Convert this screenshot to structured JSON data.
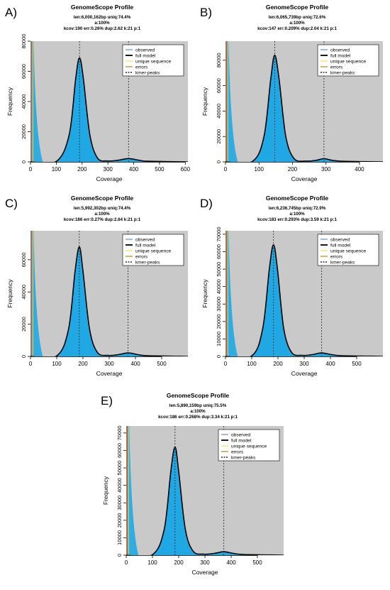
{
  "figure": {
    "panels": [
      {
        "letter": "A)",
        "title": "GenomeScope Profile",
        "stats": [
          "len:6,000,162bp uniq:74.4%",
          "a:100%",
          "kcov:190 err:0.26% dup:2.62 k:21 p:1"
        ],
        "xlabel": "Coverage",
        "ylabel": "Frequency"
      },
      {
        "letter": "B)",
        "title": "GenomeScope Profile",
        "stats": [
          "len:6,065,739bp uniq:72.6%",
          "a:100%",
          "kcov:147 err:0.209% dup:2.04 k:21 p:1"
        ],
        "xlabel": "Coverage",
        "ylabel": "Frequency"
      },
      {
        "letter": "C)",
        "title": "GenomeScope Profile",
        "stats": [
          "len:5,992,302bp uniq:74.4%",
          "a:100%",
          "kcov:186 err:0.27% dup:2.64 k:21 p:1"
        ],
        "xlabel": "Coverage",
        "ylabel": "Frequency"
      },
      {
        "letter": "D)",
        "title": "GenomeScope Profile",
        "stats": [
          "len:6,236,745bp uniq:72.9%",
          "a:100%",
          "kcov:183 err:0.293% dup:3.59 k:21 p:1"
        ],
        "xlabel": "Coverage",
        "ylabel": "Frequency"
      },
      {
        "letter": "E)",
        "title": "GenomeScope Profile",
        "stats": [
          "len:5,890,159bp uniq:75.5%",
          "a:100%",
          "kcov:186 err:0.268% dup:3.34 k:21 p:1"
        ],
        "xlabel": "Coverage",
        "ylabel": "Frequency"
      }
    ],
    "legend": [
      {
        "label": "observed",
        "color": "#5b8fd9",
        "dash": false
      },
      {
        "label": "full model",
        "color": "#000000",
        "dash": false
      },
      {
        "label": "unique sequence",
        "color": "#f2e34c",
        "dash": false
      },
      {
        "label": "errors",
        "color": "#b8860b",
        "dash": false
      },
      {
        "label": "kmer-peaks",
        "color": "#000000",
        "dash": true
      }
    ],
    "colors": {
      "plot_background": "#c9c9c9",
      "observed_fill": "#1fa8e3",
      "full_model": "#000000",
      "error_line": "#e05a2b",
      "unique_line": "#e8d84a"
    }
  },
  "chart_data": [
    {
      "type": "area",
      "panel": "A)",
      "xlim": [
        0,
        610
      ],
      "ylim": [
        0,
        80000
      ],
      "x_ticks": [
        0,
        100,
        200,
        300,
        400,
        500,
        600
      ],
      "y_ticks": [
        0,
        20000,
        40000,
        60000,
        80000
      ],
      "kmer_peaks": [
        190,
        380
      ],
      "series": [
        {
          "name": "full model",
          "x": [
            0,
            100,
            150,
            175,
            190,
            205,
            230,
            260,
            300,
            340,
            380,
            420,
            460,
            610
          ],
          "y": [
            0,
            300,
            18000,
            55000,
            69000,
            55000,
            18000,
            2500,
            600,
            1100,
            2200,
            1100,
            400,
            0
          ]
        }
      ]
    },
    {
      "type": "area",
      "panel": "B)",
      "xlim": [
        0,
        470
      ],
      "ylim": [
        0,
        95000
      ],
      "x_ticks": [
        0,
        100,
        200,
        300,
        400
      ],
      "y_ticks": [
        0,
        20000,
        40000,
        60000,
        80000
      ],
      "kmer_peaks": [
        147,
        294
      ],
      "series": [
        {
          "name": "full model",
          "x": [
            0,
            80,
            115,
            135,
            147,
            160,
            180,
            205,
            240,
            270,
            294,
            320,
            360,
            470
          ],
          "y": [
            0,
            300,
            20000,
            65000,
            84000,
            65000,
            20000,
            2500,
            600,
            1200,
            2500,
            1200,
            400,
            0
          ]
        }
      ]
    },
    {
      "type": "area",
      "panel": "C)",
      "xlim": [
        0,
        600
      ],
      "ylim": [
        0,
        78000
      ],
      "x_ticks": [
        0,
        100,
        200,
        300,
        400,
        500
      ],
      "y_ticks": [
        0,
        20000,
        40000,
        60000
      ],
      "kmer_peaks": [
        186,
        372
      ],
      "series": [
        {
          "name": "full model",
          "x": [
            0,
            100,
            145,
            170,
            186,
            200,
            225,
            255,
            295,
            335,
            372,
            410,
            450,
            600
          ],
          "y": [
            0,
            300,
            17000,
            53000,
            68000,
            53000,
            17000,
            2500,
            600,
            1100,
            2200,
            1100,
            400,
            0
          ]
        }
      ]
    },
    {
      "type": "area",
      "panel": "D)",
      "xlim": [
        0,
        600
      ],
      "ylim": [
        0,
        72000
      ],
      "x_ticks": [
        0,
        100,
        200,
        300,
        400,
        500
      ],
      "y_ticks": [
        0,
        10000,
        20000,
        30000,
        40000,
        50000,
        60000,
        70000
      ],
      "kmer_peaks": [
        183,
        366
      ],
      "series": [
        {
          "name": "full model",
          "x": [
            0,
            100,
            142,
            167,
            183,
            198,
            222,
            252,
            292,
            330,
            366,
            405,
            445,
            600
          ],
          "y": [
            0,
            300,
            16000,
            50000,
            64000,
            50000,
            16000,
            2300,
            600,
            1000,
            2000,
            1000,
            400,
            0
          ]
        }
      ]
    },
    {
      "type": "area",
      "panel": "E)",
      "xlim": [
        0,
        600
      ],
      "ylim": [
        0,
        74000
      ],
      "x_ticks": [
        0,
        100,
        200,
        300,
        400,
        500
      ],
      "y_ticks": [
        0,
        10000,
        20000,
        30000,
        40000,
        50000,
        60000,
        70000
      ],
      "kmer_peaks": [
        186,
        372
      ],
      "series": [
        {
          "name": "full model",
          "x": [
            0,
            100,
            145,
            170,
            186,
            200,
            225,
            255,
            295,
            335,
            372,
            410,
            450,
            600
          ],
          "y": [
            0,
            300,
            15000,
            48000,
            62000,
            48000,
            15000,
            2300,
            600,
            1000,
            2000,
            1000,
            400,
            0
          ]
        }
      ]
    }
  ]
}
